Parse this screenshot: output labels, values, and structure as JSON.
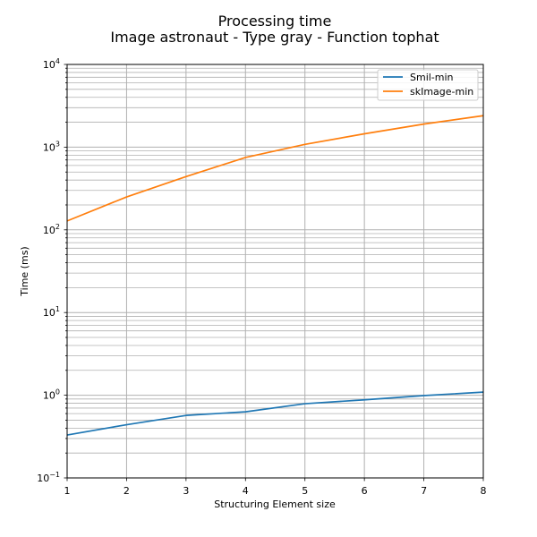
{
  "chart_data": {
    "type": "line",
    "title": [
      "Processing time",
      "Image astronaut - Type gray - Function tophat"
    ],
    "xlabel": "Structuring Element size",
    "ylabel": "Time (ms)",
    "x": [
      1,
      2,
      3,
      4,
      5,
      6,
      7,
      8
    ],
    "xlim": [
      1,
      8
    ],
    "ylim": [
      0.1,
      10000
    ],
    "yscale": "log",
    "x_ticks": [
      "1",
      "2",
      "3",
      "4",
      "5",
      "6",
      "7",
      "8"
    ],
    "y_ticks": [
      {
        "base": "10",
        "exp": "−1"
      },
      {
        "base": "10",
        "exp": "0"
      },
      {
        "base": "10",
        "exp": "1"
      },
      {
        "base": "10",
        "exp": "2"
      },
      {
        "base": "10",
        "exp": "3"
      },
      {
        "base": "10",
        "exp": "4"
      }
    ],
    "grid": "major and minor",
    "legend_position": "top-right",
    "series": [
      {
        "name": "Smil-min",
        "color": "#1f77b4",
        "values": [
          0.33,
          0.44,
          0.57,
          0.63,
          0.79,
          0.88,
          0.99,
          1.09
        ]
      },
      {
        "name": "skImage-min",
        "color": "#ff7f0e",
        "values": [
          128,
          250,
          440,
          750,
          1080,
          1450,
          1900,
          2400
        ]
      }
    ]
  }
}
